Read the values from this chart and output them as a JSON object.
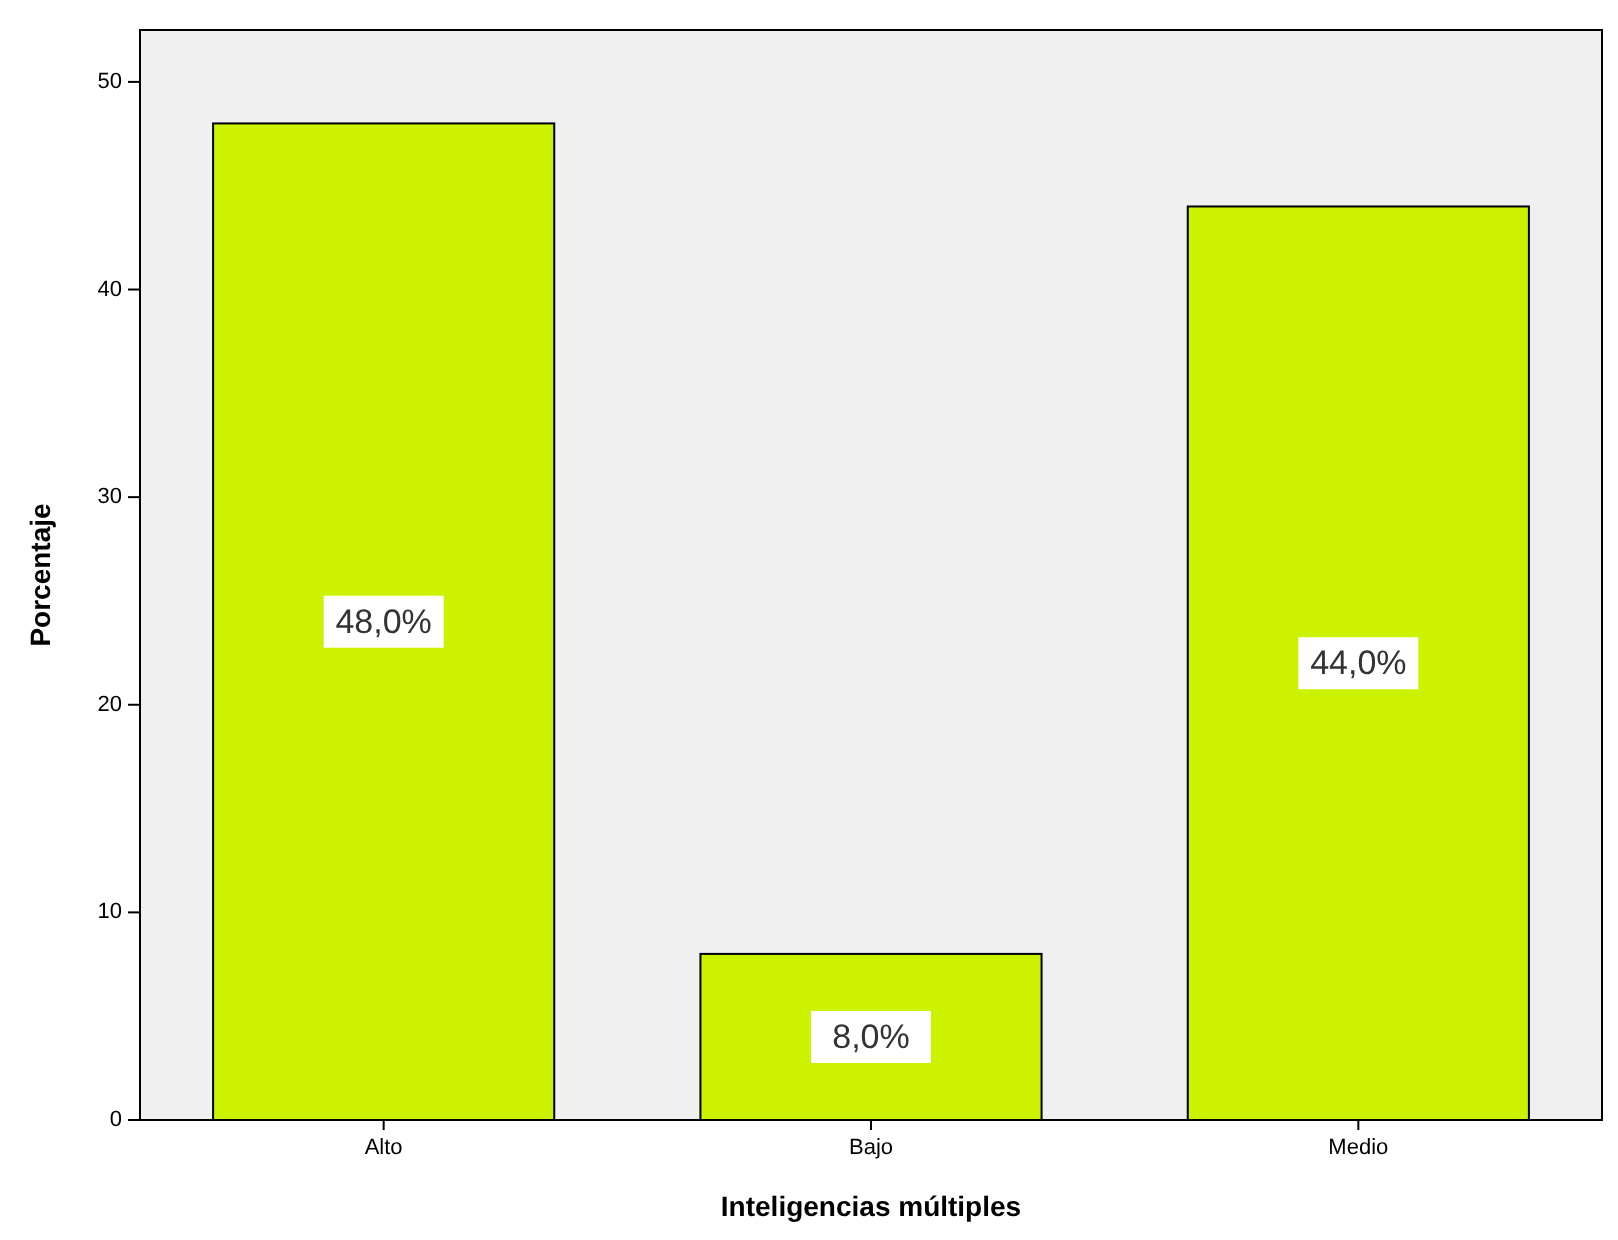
{
  "chart_data": {
    "type": "bar",
    "xlabel": "Inteligencias múltiples",
    "ylabel": "Porcentaje",
    "categories": [
      "Alto",
      "Bajo",
      "Medio"
    ],
    "values": [
      48,
      8,
      44
    ],
    "value_labels": [
      "48,0%",
      "8,0%",
      "44,0%"
    ],
    "color": "#ccf200",
    "ylim": [
      0,
      52.5
    ],
    "yticks": [
      0,
      10,
      20,
      30,
      40,
      50
    ],
    "grid": false
  }
}
